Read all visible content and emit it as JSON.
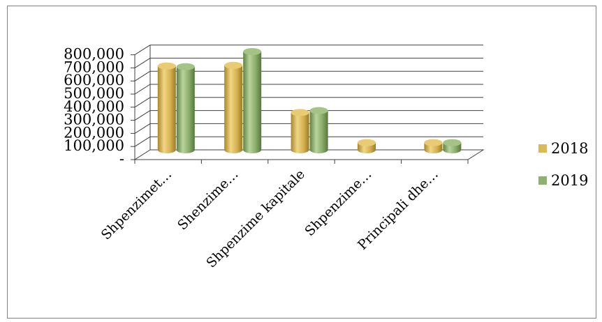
{
  "chart_data": {
    "type": "bar",
    "title": "",
    "xlabel": "",
    "ylabel": "",
    "categories": [
      "Shpenzimet…",
      "Shenzime…",
      "Shpenzime kapitale",
      "Shpenzime…",
      "Principali dhe…"
    ],
    "series": [
      {
        "name": "2018",
        "color": "#dbb95b",
        "values": [
          640000,
          645000,
          285000,
          55000,
          55000
        ]
      },
      {
        "name": "2019",
        "color": "#8fb16f",
        "values": [
          635000,
          750000,
          300000,
          null,
          55000
        ]
      }
    ],
    "ylim": [
      0,
      800000
    ],
    "y_ticks": [
      {
        "value": 0,
        "label": "-"
      },
      {
        "value": 100000,
        "label": "100,000"
      },
      {
        "value": 200000,
        "label": "200,000"
      },
      {
        "value": 300000,
        "label": "300,000"
      },
      {
        "value": 400000,
        "label": "400,000"
      },
      {
        "value": 500000,
        "label": "500,000"
      },
      {
        "value": 600000,
        "label": "600,000"
      },
      {
        "value": 700000,
        "label": "700,000"
      },
      {
        "value": 800000,
        "label": "800,000"
      }
    ],
    "grid": true,
    "legend": "right",
    "style": "3d-cylinder"
  }
}
